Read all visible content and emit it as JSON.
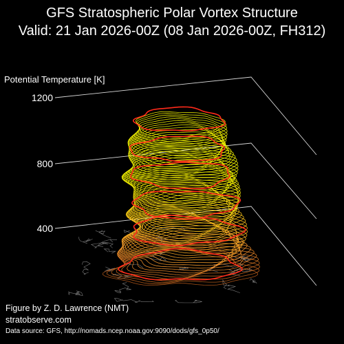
{
  "title": {
    "line1": "GFS Stratospheric Polar Vortex Structure",
    "line2": "Valid: 21 Jan 2026-00Z  (08 Jan 2026-00Z, FH312)"
  },
  "axis": {
    "label": "Potential Temperature [K]",
    "ticks": [
      "1200",
      "800",
      "400"
    ]
  },
  "credits": {
    "author": "Figure by Z. D. Lawrence (NMT)",
    "site": "stratobserve.com",
    "source": "Data source: GFS, http://nomads.ncep.noaa.gov:9090/dods/gfs_0p50/"
  },
  "colors": {
    "background": "#000000",
    "contour_low": "#ff9a2e",
    "contour_high": "#ffff00",
    "highlight": "#ff2a1a",
    "grid": "#ffffff",
    "coastline": "#9a9a9a"
  }
}
